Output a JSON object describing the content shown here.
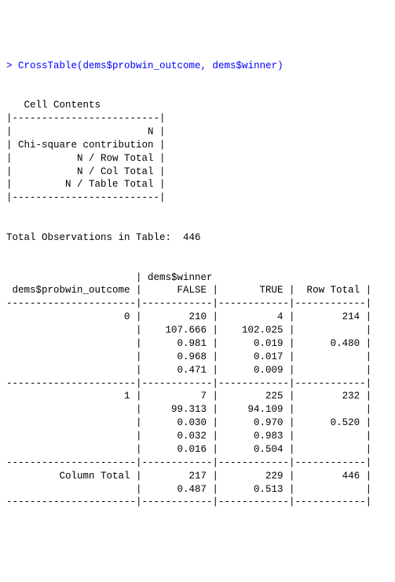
{
  "console": {
    "prompt": "> ",
    "command": "CrossTable(dems$probwin_outcome, dems$winner)",
    "cell_contents_header": "   Cell Contents",
    "bar": "|-------------------------|",
    "legend": [
      "|                       N |",
      "| Chi-square contribution |",
      "|           N / Row Total |",
      "|           N / Col Total |",
      "|         N / Table Total |"
    ],
    "total_obs_label": "Total Observations in Table:  ",
    "total_obs": "446",
    "col_var": "dems$winner",
    "row_var": "dems$probwin_outcome",
    "col_false": "FALSE",
    "col_true": "TRUE",
    "row_total_label": "Row Total",
    "col_total_label": "Column Total",
    "r0": {
      "label": "0",
      "n_false": "210",
      "n_true": "4",
      "row_total": "214",
      "chi_false": "107.666",
      "chi_true": "102.025",
      "rowp_false": "0.981",
      "rowp_true": "0.019",
      "row_prop": "0.480",
      "colp_false": "0.968",
      "colp_true": "0.017",
      "tabp_false": "0.471",
      "tabp_true": "0.009"
    },
    "r1": {
      "label": "1",
      "n_false": "7",
      "n_true": "225",
      "row_total": "232",
      "chi_false": "99.313",
      "chi_true": "94.109",
      "rowp_false": "0.030",
      "rowp_true": "0.970",
      "row_prop": "0.520",
      "colp_false": "0.032",
      "colp_true": "0.983",
      "tabp_false": "0.016",
      "tabp_true": "0.504"
    },
    "coltot": {
      "false": "217",
      "true": "229",
      "grand": "446",
      "p_false": "0.487",
      "p_true": "0.513"
    }
  }
}
